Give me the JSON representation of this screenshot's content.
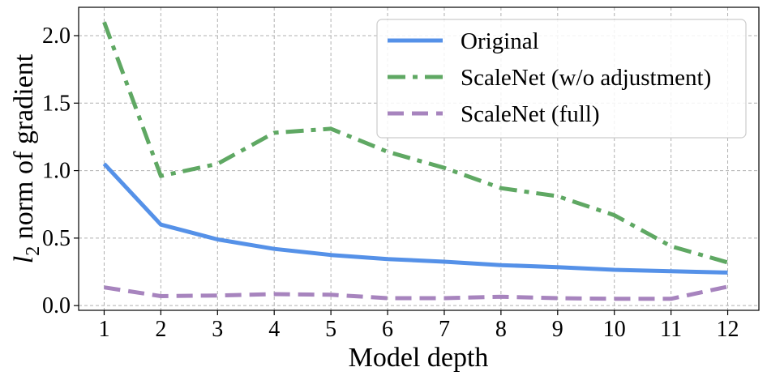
{
  "chart_data": {
    "type": "line",
    "x": [
      1,
      2,
      3,
      4,
      5,
      6,
      7,
      8,
      9,
      10,
      11,
      12
    ],
    "series": [
      {
        "name": "Original",
        "color": "#5591E8",
        "style": "solid",
        "values": [
          1.05,
          0.6,
          0.49,
          0.42,
          0.375,
          0.345,
          0.325,
          0.3,
          0.285,
          0.265,
          0.255,
          0.245
        ]
      },
      {
        "name": "ScaleNet (w/o adjustment)",
        "color": "#5FA863",
        "style": "dashdot",
        "values": [
          2.1,
          0.96,
          1.05,
          1.28,
          1.31,
          1.14,
          1.02,
          0.87,
          0.81,
          0.67,
          0.44,
          0.32
        ]
      },
      {
        "name": "ScaleNet (full)",
        "color": "#A784BE",
        "style": "dashed",
        "values": [
          0.135,
          0.07,
          0.075,
          0.085,
          0.08,
          0.055,
          0.055,
          0.065,
          0.055,
          0.05,
          0.05,
          0.14
        ]
      }
    ],
    "xlabel": "Model depth",
    "ylabel_italic": "l",
    "ylabel_sub": "2",
    "ylabel_rest": " norm of gradient",
    "xticks": [
      "1",
      "2",
      "3",
      "4",
      "5",
      "6",
      "7",
      "8",
      "9",
      "10",
      "11",
      "12"
    ],
    "yticks": [
      "0.0",
      "0.5",
      "1.0",
      "1.5",
      "2.0"
    ],
    "ytick_values": [
      0.0,
      0.5,
      1.0,
      1.5,
      2.0
    ],
    "xlim": [
      0.55,
      12.55
    ],
    "ylim": [
      -0.035,
      2.21
    ],
    "grid": true,
    "legend_position": "top-right"
  }
}
